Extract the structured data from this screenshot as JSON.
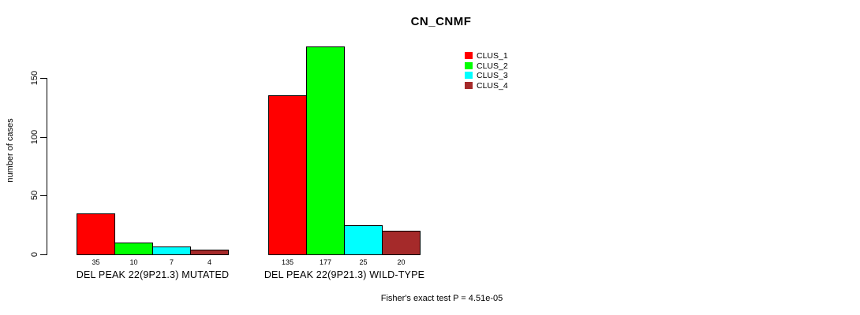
{
  "title": "CN_CNMF",
  "y_axis": {
    "label": "number of cases",
    "ticks": [
      0,
      50,
      100,
      150
    ]
  },
  "caption": "Fisher's exact test P = 4.51e-05",
  "legend": {
    "items": [
      {
        "label": "CLUS_1",
        "color": "#FF0000"
      },
      {
        "label": "CLUS_2",
        "color": "#00FF00"
      },
      {
        "label": "CLUS_3",
        "color": "#00FFFF"
      },
      {
        "label": "CLUS_4",
        "color": "#A52A2A"
      }
    ]
  },
  "chart_data": {
    "type": "bar",
    "title": "CN_CNMF",
    "xlabel": "",
    "ylabel": "number of cases",
    "categories": [
      "DEL PEAK 22(9P21.3) MUTATED",
      "DEL PEAK 22(9P21.3) WILD-TYPE"
    ],
    "series": [
      {
        "name": "CLUS_1",
        "color": "#FF0000",
        "values": [
          35,
          135
        ]
      },
      {
        "name": "CLUS_2",
        "color": "#00FF00",
        "values": [
          10,
          177
        ]
      },
      {
        "name": "CLUS_3",
        "color": "#00FFFF",
        "values": [
          7,
          25
        ]
      },
      {
        "name": "CLUS_4",
        "color": "#A52A2A",
        "values": [
          4,
          20
        ]
      }
    ],
    "yticks": [
      0,
      50,
      100,
      150
    ],
    "ylim": [
      0,
      180
    ],
    "grid": false,
    "legend_position": "top-right",
    "bar_value_labels": true,
    "annotation": "Fisher's exact test P = 4.51e-05"
  }
}
